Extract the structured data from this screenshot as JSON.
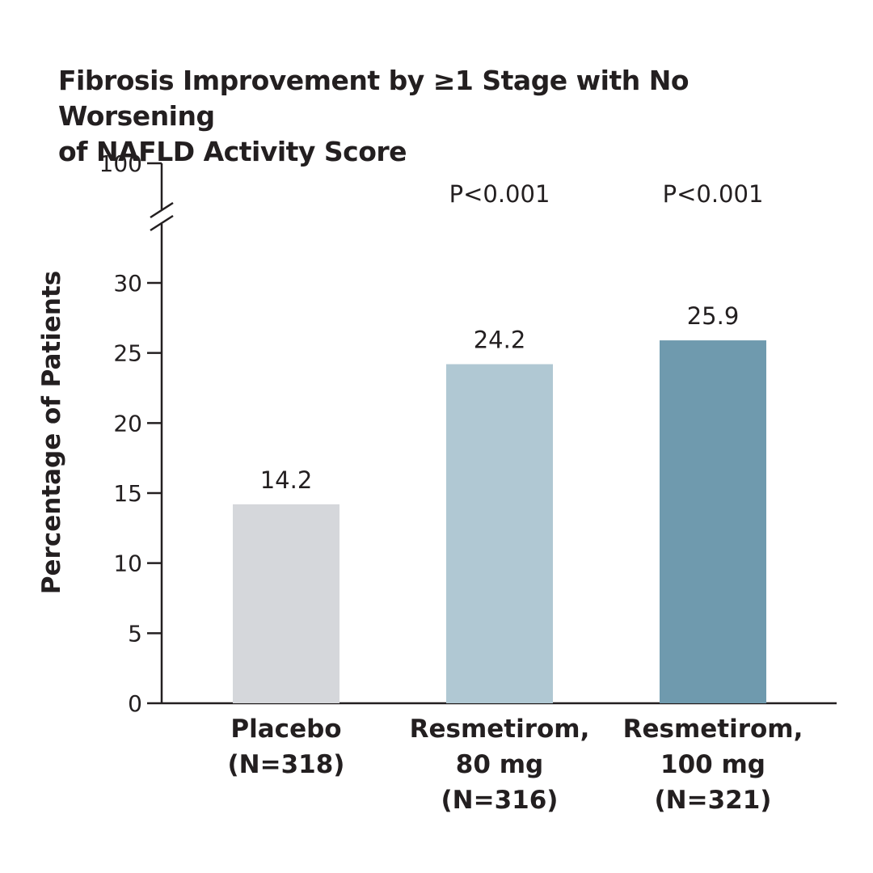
{
  "chart_data": {
    "type": "bar",
    "title_lines": [
      "Fibrosis Improvement by ≥1 Stage with No Worsening",
      "of NAFLD Activity Score"
    ],
    "ylabel": "Percentage of Patients",
    "xlabel": "",
    "ylim": [
      0,
      30
    ],
    "yticks": [
      0,
      5,
      10,
      15,
      20,
      25,
      30
    ],
    "axis_break": true,
    "ytop_label": "100",
    "grid": false,
    "categories": [
      [
        "Placebo",
        "(N=318)"
      ],
      [
        "Resmetirom,",
        "80 mg",
        "(N=316)"
      ],
      [
        "Resmetirom,",
        "100 mg",
        "(N=321)"
      ]
    ],
    "values": [
      14.2,
      24.2,
      25.9
    ],
    "value_labels": [
      "14.2",
      "24.2",
      "25.9"
    ],
    "p_values": [
      "",
      "P<0.001",
      "P<0.001"
    ],
    "colors": [
      "#d5d7db",
      "#b0c8d3",
      "#6f9aae"
    ],
    "axis_color": "#231f20"
  }
}
